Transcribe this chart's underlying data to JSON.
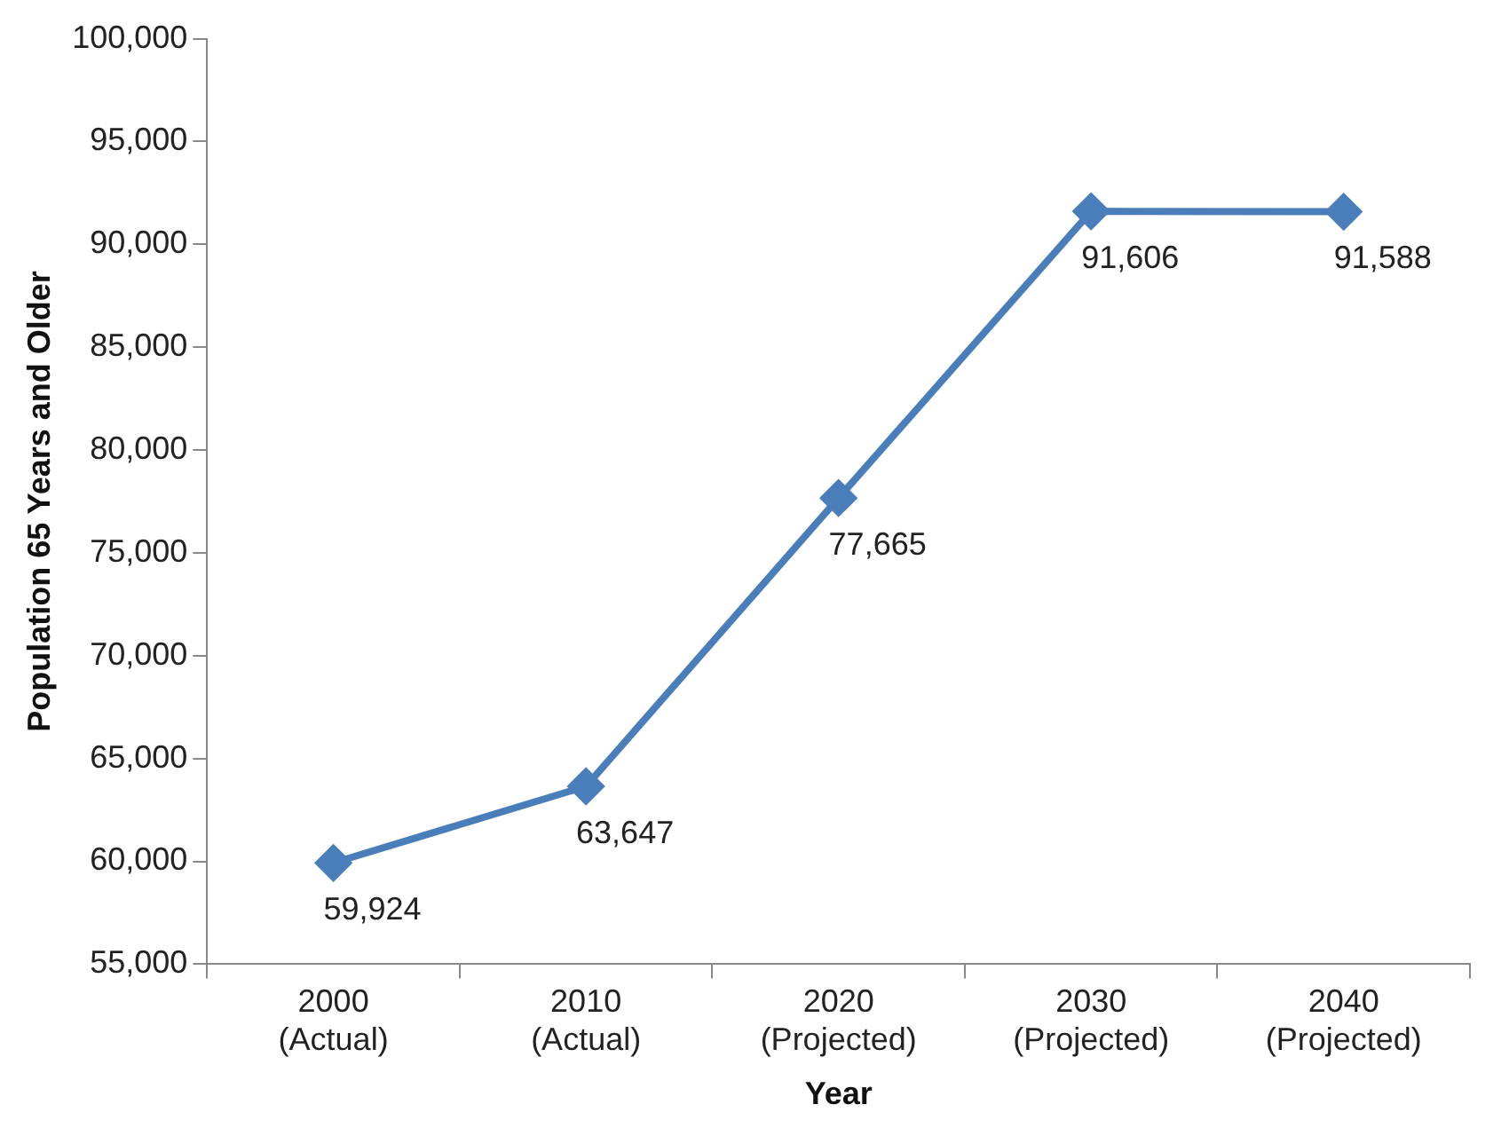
{
  "chart_data": {
    "type": "line",
    "xlabel": "Year",
    "ylabel": "Population 65 Years and Older",
    "categories": [
      "2000 (Actual)",
      "2010 (Actual)",
      "2020 (Projected)",
      "2030 (Projected)",
      "2040 (Projected)"
    ],
    "series": [
      {
        "color": "#4a7ebb",
        "values": [
          59924,
          63647,
          77665,
          91606,
          91588
        ],
        "value_labels": [
          "59,924",
          "63,647",
          "77,665",
          "91,606",
          "91,588"
        ]
      }
    ],
    "ylim": [
      55000,
      100000
    ],
    "yticks": [
      {
        "value": 55000,
        "label": "55,000"
      },
      {
        "value": 60000,
        "label": "60,000"
      },
      {
        "value": 65000,
        "label": "65,000"
      },
      {
        "value": 70000,
        "label": "70,000"
      },
      {
        "value": 75000,
        "label": "75,000"
      },
      {
        "value": 80000,
        "label": "80,000"
      },
      {
        "value": 85000,
        "label": "85,000"
      },
      {
        "value": 90000,
        "label": "90,000"
      },
      {
        "value": 95000,
        "label": "95,000"
      },
      {
        "value": 100000,
        "label": "100,000"
      }
    ],
    "grid": false,
    "legend": false,
    "marker": "diamond",
    "line_style": "solid"
  }
}
